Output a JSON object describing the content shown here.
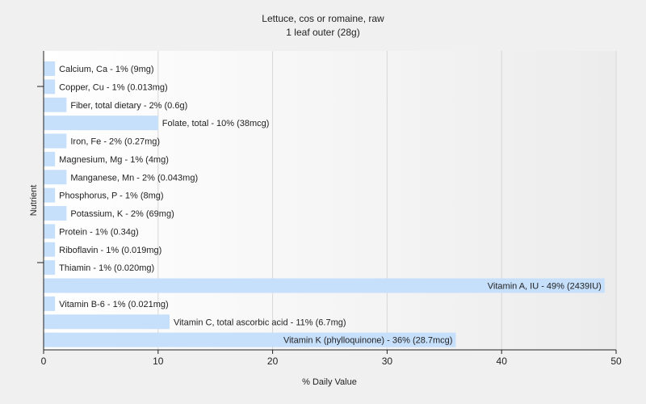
{
  "chart_data": {
    "type": "bar",
    "orientation": "horizontal",
    "title": "Lettuce, cos or romaine, raw",
    "subtitle": "1 leaf outer (28g)",
    "xlabel": "% Daily Value",
    "ylabel": "Nutrient",
    "xlim": [
      0,
      50
    ],
    "xticks": [
      "0",
      "10",
      "20",
      "30",
      "40",
      "50"
    ],
    "grid": true,
    "bar_color": "#c6dffb",
    "categories": [
      "Calcium, Ca",
      "Copper, Cu",
      "Fiber, total dietary",
      "Folate, total",
      "Iron, Fe",
      "Magnesium, Mg",
      "Manganese, Mn",
      "Phosphorus, P",
      "Potassium, K",
      "Protein",
      "Riboflavin",
      "Thiamin",
      "Vitamin A, IU",
      "Vitamin B-6",
      "Vitamin C, total ascorbic acid",
      "Vitamin K (phylloquinone)"
    ],
    "values": [
      1,
      1,
      2,
      10,
      2,
      1,
      2,
      1,
      2,
      1,
      1,
      1,
      49,
      1,
      11,
      36
    ],
    "labels": [
      "Calcium, Ca - 1% (9mg)",
      "Copper, Cu - 1% (0.013mg)",
      "Fiber, total dietary - 2% (0.6g)",
      "Folate, total - 10% (38mcg)",
      "Iron, Fe - 2% (0.27mg)",
      "Magnesium, Mg - 1% (4mg)",
      "Manganese, Mn - 2% (0.043mg)",
      "Phosphorus, P - 1% (8mg)",
      "Potassium, K - 2% (69mg)",
      "Protein - 1% (0.34g)",
      "Riboflavin - 1% (0.019mg)",
      "Thiamin - 1% (0.020mg)",
      "Vitamin A, IU - 49% (2439IU)",
      "Vitamin B-6 - 1% (0.021mg)",
      "Vitamin C, total ascorbic acid - 11% (6.7mg)",
      "Vitamin K (phylloquinone) - 36% (28.7mcg)"
    ]
  }
}
